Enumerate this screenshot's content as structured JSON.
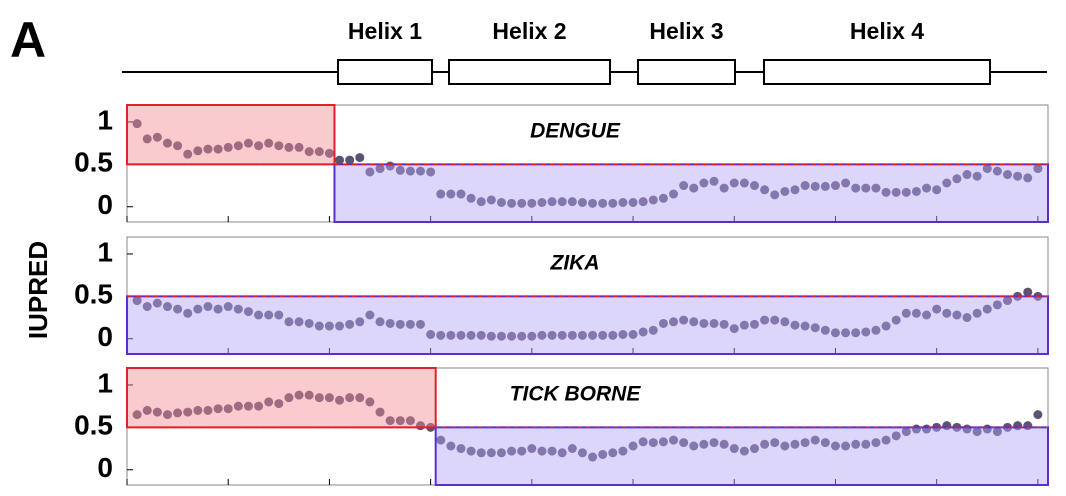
{
  "figure": {
    "panel_label": "A",
    "ylabel": "IUPRED",
    "helices": [
      "Helix 1",
      "Helix 2",
      "Helix 3",
      "Helix 4"
    ]
  },
  "chart_data": [
    {
      "type": "scatter",
      "title": "DENGUE",
      "color": "#5e5273",
      "threshold": 0.5,
      "xlim": [
        0,
        91
      ],
      "xticks": [
        0,
        10,
        20,
        30,
        40,
        50,
        60,
        70,
        80,
        90
      ],
      "ylim": [
        -0.18,
        1.2
      ],
      "yticks": [
        0,
        0.5,
        1
      ],
      "regions": [
        {
          "color": "#f28a92",
          "edge": "#e0202a",
          "x": [
            0,
            20.5
          ],
          "y": [
            0.5,
            1.2
          ]
        },
        {
          "color": "#b1a4f5",
          "edge": "#5a2fd0",
          "x": [
            20.5,
            91
          ],
          "y": [
            -0.18,
            0.5
          ]
        }
      ],
      "x": [
        1,
        2,
        3,
        4,
        5,
        6,
        7,
        8,
        9,
        10,
        11,
        12,
        13,
        14,
        15,
        16,
        17,
        18,
        19,
        20,
        21,
        22,
        23,
        24,
        25,
        26,
        27,
        28,
        29,
        30,
        31,
        32,
        33,
        34,
        35,
        36,
        37,
        38,
        39,
        40,
        41,
        42,
        43,
        44,
        45,
        46,
        47,
        48,
        49,
        50,
        51,
        52,
        53,
        54,
        55,
        56,
        57,
        58,
        59,
        60,
        61,
        62,
        63,
        64,
        65,
        66,
        67,
        68,
        69,
        70,
        71,
        72,
        73,
        74,
        75,
        76,
        77,
        78,
        79,
        80,
        81,
        82,
        83,
        84,
        85,
        86,
        87,
        88,
        89,
        90
      ],
      "values": [
        0.98,
        0.8,
        0.82,
        0.75,
        0.72,
        0.62,
        0.66,
        0.68,
        0.68,
        0.7,
        0.72,
        0.75,
        0.72,
        0.75,
        0.72,
        0.7,
        0.7,
        0.65,
        0.65,
        0.63,
        0.55,
        0.55,
        0.58,
        0.41,
        0.45,
        0.48,
        0.43,
        0.42,
        0.42,
        0.41,
        0.15,
        0.15,
        0.15,
        0.1,
        0.06,
        0.08,
        0.05,
        0.04,
        0.04,
        0.04,
        0.05,
        0.06,
        0.06,
        0.06,
        0.05,
        0.04,
        0.04,
        0.04,
        0.05,
        0.05,
        0.06,
        0.08,
        0.1,
        0.15,
        0.25,
        0.22,
        0.28,
        0.3,
        0.22,
        0.28,
        0.28,
        0.25,
        0.2,
        0.14,
        0.18,
        0.2,
        0.25,
        0.24,
        0.24,
        0.25,
        0.28,
        0.22,
        0.22,
        0.22,
        0.17,
        0.17,
        0.17,
        0.18,
        0.22,
        0.2,
        0.28,
        0.33,
        0.38,
        0.36,
        0.45,
        0.42,
        0.38,
        0.36,
        0.34,
        0.45
      ]
    },
    {
      "type": "scatter",
      "title": "ZIKA",
      "color": "#5e5273",
      "threshold": 0.5,
      "xlim": [
        0,
        91
      ],
      "xticks": [
        0,
        10,
        20,
        30,
        40,
        50,
        60,
        70,
        80,
        90
      ],
      "ylim": [
        -0.18,
        1.2
      ],
      "yticks": [
        0,
        0.5,
        1
      ],
      "regions": [
        {
          "color": "#b1a4f5",
          "edge": "#5a2fd0",
          "x": [
            0,
            91
          ],
          "y": [
            -0.18,
            0.5
          ]
        }
      ],
      "x": [
        1,
        2,
        3,
        4,
        5,
        6,
        7,
        8,
        9,
        10,
        11,
        12,
        13,
        14,
        15,
        16,
        17,
        18,
        19,
        20,
        21,
        22,
        23,
        24,
        25,
        26,
        27,
        28,
        29,
        30,
        31,
        32,
        33,
        34,
        35,
        36,
        37,
        38,
        39,
        40,
        41,
        42,
        43,
        44,
        45,
        46,
        47,
        48,
        49,
        50,
        51,
        52,
        53,
        54,
        55,
        56,
        57,
        58,
        59,
        60,
        61,
        62,
        63,
        64,
        65,
        66,
        67,
        68,
        69,
        70,
        71,
        72,
        73,
        74,
        75,
        76,
        77,
        78,
        79,
        80,
        81,
        82,
        83,
        84,
        85,
        86,
        87,
        88,
        89,
        90
      ],
      "values": [
        0.45,
        0.38,
        0.42,
        0.38,
        0.35,
        0.3,
        0.35,
        0.38,
        0.35,
        0.38,
        0.35,
        0.32,
        0.28,
        0.28,
        0.28,
        0.2,
        0.2,
        0.18,
        0.15,
        0.15,
        0.15,
        0.17,
        0.2,
        0.28,
        0.2,
        0.18,
        0.17,
        0.17,
        0.17,
        0.05,
        0.04,
        0.04,
        0.04,
        0.04,
        0.04,
        0.03,
        0.03,
        0.03,
        0.03,
        0.03,
        0.04,
        0.04,
        0.04,
        0.04,
        0.04,
        0.04,
        0.04,
        0.04,
        0.05,
        0.05,
        0.08,
        0.1,
        0.18,
        0.2,
        0.22,
        0.2,
        0.18,
        0.18,
        0.17,
        0.12,
        0.16,
        0.17,
        0.22,
        0.22,
        0.2,
        0.16,
        0.15,
        0.13,
        0.1,
        0.07,
        0.07,
        0.07,
        0.08,
        0.1,
        0.15,
        0.22,
        0.3,
        0.3,
        0.28,
        0.35,
        0.3,
        0.28,
        0.25,
        0.3,
        0.35,
        0.4,
        0.45,
        0.5,
        0.55,
        0.5
      ]
    },
    {
      "type": "scatter",
      "title": "TICK BORNE",
      "color": "#5e5273",
      "threshold": 0.5,
      "xlim": [
        0,
        91
      ],
      "xticks": [
        0,
        10,
        20,
        30,
        40,
        50,
        60,
        70,
        80,
        90
      ],
      "ylim": [
        -0.18,
        1.2
      ],
      "yticks": [
        0,
        0.5,
        1
      ],
      "regions": [
        {
          "color": "#f28a92",
          "edge": "#e0202a",
          "x": [
            0,
            30.5
          ],
          "y": [
            0.5,
            1.2
          ]
        },
        {
          "color": "#b1a4f5",
          "edge": "#5a2fd0",
          "x": [
            30.5,
            91
          ],
          "y": [
            -0.18,
            0.5
          ]
        }
      ],
      "x": [
        1,
        2,
        3,
        4,
        5,
        6,
        7,
        8,
        9,
        10,
        11,
        12,
        13,
        14,
        15,
        16,
        17,
        18,
        19,
        20,
        21,
        22,
        23,
        24,
        25,
        26,
        27,
        28,
        29,
        30,
        31,
        32,
        33,
        34,
        35,
        36,
        37,
        38,
        39,
        40,
        41,
        42,
        43,
        44,
        45,
        46,
        47,
        48,
        49,
        50,
        51,
        52,
        53,
        54,
        55,
        56,
        57,
        58,
        59,
        60,
        61,
        62,
        63,
        64,
        65,
        66,
        67,
        68,
        69,
        70,
        71,
        72,
        73,
        74,
        75,
        76,
        77,
        78,
        79,
        80,
        81,
        82,
        83,
        84,
        85,
        86,
        87,
        88,
        89,
        90
      ],
      "values": [
        0.65,
        0.7,
        0.68,
        0.65,
        0.67,
        0.68,
        0.7,
        0.7,
        0.72,
        0.72,
        0.75,
        0.75,
        0.75,
        0.8,
        0.78,
        0.85,
        0.88,
        0.88,
        0.85,
        0.85,
        0.82,
        0.85,
        0.85,
        0.8,
        0.68,
        0.58,
        0.58,
        0.58,
        0.52,
        0.5,
        0.35,
        0.28,
        0.25,
        0.22,
        0.2,
        0.2,
        0.2,
        0.22,
        0.22,
        0.25,
        0.22,
        0.22,
        0.2,
        0.25,
        0.2,
        0.15,
        0.18,
        0.2,
        0.22,
        0.28,
        0.33,
        0.32,
        0.33,
        0.35,
        0.32,
        0.28,
        0.3,
        0.32,
        0.3,
        0.25,
        0.22,
        0.25,
        0.3,
        0.32,
        0.28,
        0.3,
        0.32,
        0.35,
        0.32,
        0.28,
        0.28,
        0.3,
        0.3,
        0.32,
        0.35,
        0.4,
        0.45,
        0.48,
        0.48,
        0.5,
        0.52,
        0.5,
        0.48,
        0.45,
        0.48,
        0.45,
        0.5,
        0.52,
        0.52,
        0.65
      ]
    }
  ]
}
